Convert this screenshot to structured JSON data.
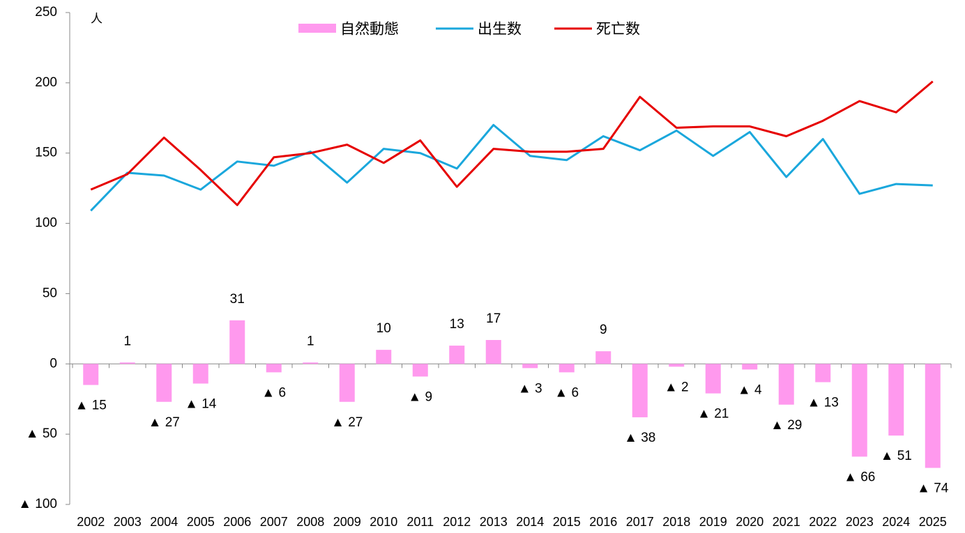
{
  "chart_data": {
    "type": "bar",
    "unit": "人",
    "categories": [
      "2002",
      "2003",
      "2004",
      "2005",
      "2006",
      "2007",
      "2008",
      "2009",
      "2010",
      "2011",
      "2012",
      "2013",
      "2014",
      "2015",
      "2016",
      "2017",
      "2018",
      "2019",
      "2020",
      "2021",
      "2022",
      "2023",
      "2024",
      "2025"
    ],
    "series": [
      {
        "name": "自然動態",
        "type": "bar",
        "color": "#ff99ee",
        "values": [
          -15,
          1,
          -27,
          -14,
          31,
          -6,
          1,
          -27,
          10,
          -9,
          13,
          17,
          -3,
          -6,
          9,
          -38,
          -2,
          -21,
          -4,
          -29,
          -13,
          -66,
          -51,
          -74
        ],
        "value_labels": [
          "▲ 15",
          "1",
          "▲ 27",
          "▲ 14",
          "31",
          "▲ 6",
          "1",
          "▲ 27",
          "10",
          "▲ 9",
          "13",
          "17",
          "▲ 3",
          "▲ 6",
          "9",
          "▲ 38",
          "▲ 2",
          "▲ 21",
          "▲ 4",
          "▲ 29",
          "▲ 13",
          "▲ 66",
          "▲ 51",
          "▲ 74"
        ]
      },
      {
        "name": "出生数",
        "type": "line",
        "color": "#1aa7dc",
        "values": [
          109,
          136,
          134,
          124,
          144,
          141,
          151,
          129,
          153,
          150,
          139,
          170,
          148,
          145,
          162,
          152,
          166,
          148,
          165,
          133,
          160,
          121,
          128,
          127
        ]
      },
      {
        "name": "死亡数",
        "type": "line",
        "color": "#e60000",
        "values": [
          124,
          135,
          161,
          138,
          113,
          147,
          150,
          156,
          143,
          159,
          126,
          153,
          151,
          151,
          153,
          190,
          168,
          169,
          169,
          162,
          173,
          187,
          179,
          201
        ]
      }
    ],
    "ylim": [
      -100,
      250
    ],
    "yticks": [
      {
        "value": -100,
        "label": "▲ 100"
      },
      {
        "value": -50,
        "label": "▲ 50"
      },
      0,
      50,
      100,
      150,
      200,
      250
    ]
  }
}
